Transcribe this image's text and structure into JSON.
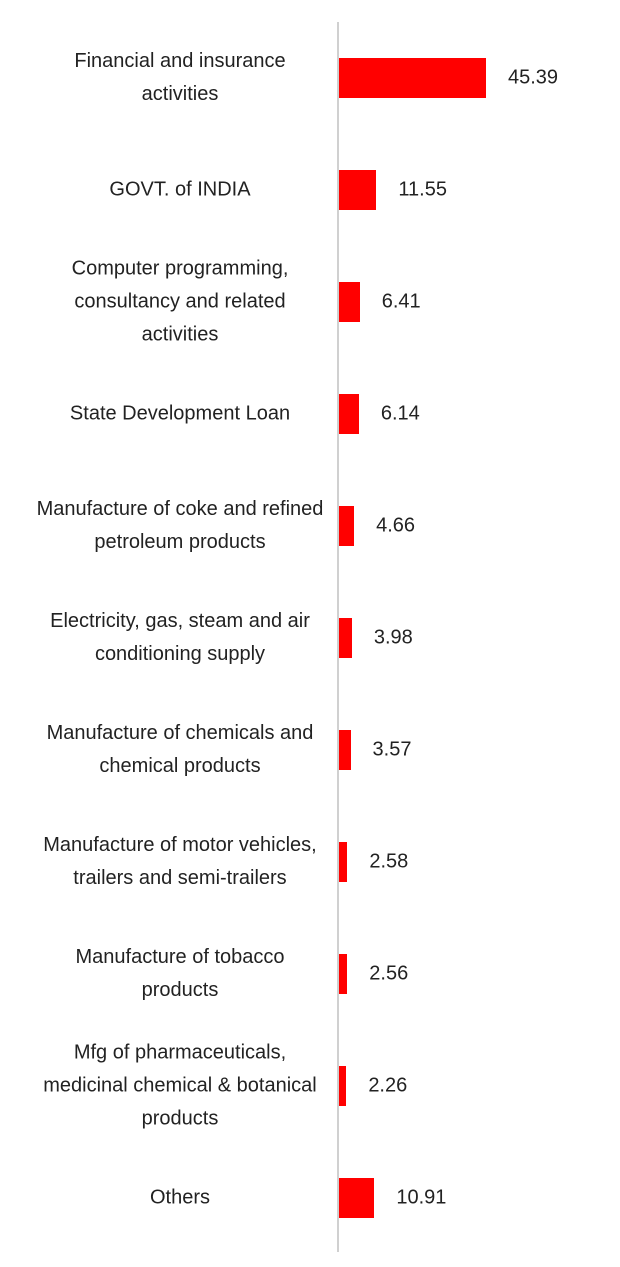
{
  "chart_data": {
    "type": "bar",
    "orientation": "horizontal",
    "color": "#ff0000",
    "categories": [
      "Financial and insurance activities",
      "GOVT. of INDIA",
      "Computer programming, consultancy and related activities",
      "State Development Loan",
      "Manufacture of coke and refined petroleum products",
      "Electricity, gas, steam and air conditioning supply",
      "Manufacture of chemicals and chemical products",
      "Manufacture of motor vehicles, trailers and semi-trailers",
      "Manufacture of tobacco products",
      "Mfg of pharmaceuticals, medicinal chemical & botanical products",
      "Others"
    ],
    "values": [
      45.39,
      11.55,
      6.41,
      6.14,
      4.66,
      3.98,
      3.57,
      2.58,
      2.56,
      2.26,
      10.91
    ]
  }
}
